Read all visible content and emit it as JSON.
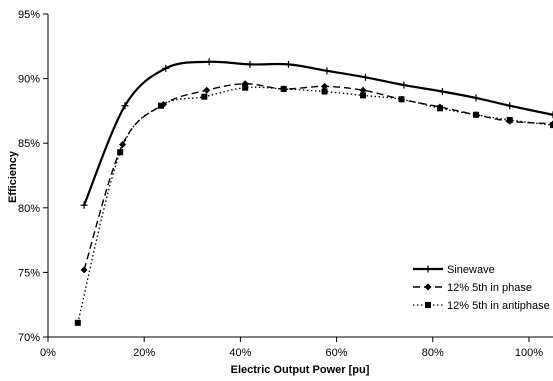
{
  "chart_data": {
    "type": "line",
    "title": "",
    "xlabel": "Electric Output Power [pu]",
    "ylabel": "Efficiency",
    "xlim": [
      0,
      1.05
    ],
    "ylim": [
      0.7,
      0.95
    ],
    "x_ticks": [
      0,
      0.2,
      0.4,
      0.6,
      0.8,
      1.0
    ],
    "x_tick_labels": [
      "0%",
      "20%",
      "40%",
      "60%",
      "80%",
      "100%"
    ],
    "y_ticks": [
      0.7,
      0.75,
      0.8,
      0.85,
      0.9,
      0.95
    ],
    "y_tick_labels": [
      "70%",
      "75%",
      "80%",
      "85%",
      "90%",
      "95%"
    ],
    "grid": false,
    "legend_position": "bottom-right",
    "series": [
      {
        "name": "Sinewave",
        "line_style": "solid",
        "marker": "plus",
        "color": "#000000",
        "points": [
          [
            0.075,
            0.802
          ],
          [
            0.16,
            0.879
          ],
          [
            0.245,
            0.908
          ],
          [
            0.335,
            0.913
          ],
          [
            0.42,
            0.911
          ],
          [
            0.5,
            0.911
          ],
          [
            0.58,
            0.906
          ],
          [
            0.66,
            0.901
          ],
          [
            0.74,
            0.895
          ],
          [
            0.82,
            0.89
          ],
          [
            0.89,
            0.885
          ],
          [
            0.96,
            0.879
          ],
          [
            1.05,
            0.872
          ]
        ]
      },
      {
        "name": "12% 5th in phase",
        "line_style": "dashed",
        "marker": "diamond",
        "color": "#000000",
        "points": [
          [
            0.075,
            0.752
          ],
          [
            0.155,
            0.849
          ],
          [
            0.24,
            0.88
          ],
          [
            0.33,
            0.891
          ],
          [
            0.41,
            0.896
          ],
          [
            0.49,
            0.892
          ],
          [
            0.575,
            0.894
          ],
          [
            0.655,
            0.891
          ],
          [
            0.735,
            0.884
          ],
          [
            0.815,
            0.878
          ],
          [
            0.89,
            0.872
          ],
          [
            0.96,
            0.867
          ],
          [
            1.05,
            0.865
          ]
        ]
      },
      {
        "name": "12% 5th in antiphase",
        "line_style": "dotted",
        "marker": "square",
        "color": "#000000",
        "points": [
          [
            0.062,
            0.711
          ],
          [
            0.15,
            0.843
          ],
          [
            0.235,
            0.879
          ],
          [
            0.325,
            0.886
          ],
          [
            0.41,
            0.893
          ],
          [
            0.49,
            0.892
          ],
          [
            0.575,
            0.89
          ],
          [
            0.655,
            0.887
          ],
          [
            0.735,
            0.884
          ],
          [
            0.815,
            0.877
          ],
          [
            0.89,
            0.872
          ],
          [
            0.96,
            0.868
          ],
          [
            1.05,
            0.864
          ]
        ]
      }
    ]
  }
}
